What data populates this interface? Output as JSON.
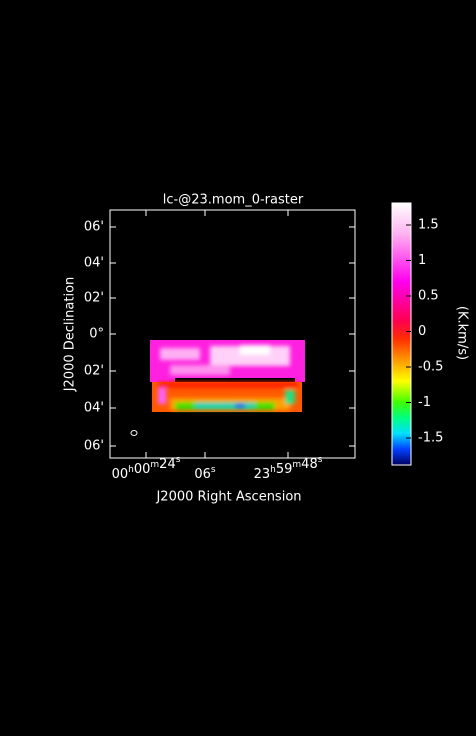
{
  "title": "lc-@23.mom_0-raster",
  "x_axis": {
    "label": "J2000 Right Ascension",
    "ticks": [
      [
        [
          "00",
          "h"
        ],
        [
          "00",
          "m"
        ],
        [
          "24",
          "s"
        ]
      ],
      [
        [
          "06",
          "s"
        ]
      ],
      [
        [
          "23",
          "h"
        ],
        [
          "59",
          "m"
        ],
        [
          "48",
          "s"
        ]
      ]
    ]
  },
  "y_axis": {
    "label": "J2000 Declination",
    "ticks": [
      "06'",
      "04'",
      "02'",
      "0°",
      "02'",
      "04'",
      "06'"
    ]
  },
  "colorbar": {
    "label": "(K.km/s)",
    "range": [
      -1.88,
      1.81
    ],
    "ticks": [
      1.5,
      1,
      0.5,
      0,
      -0.5,
      -1,
      -1.5
    ]
  }
}
